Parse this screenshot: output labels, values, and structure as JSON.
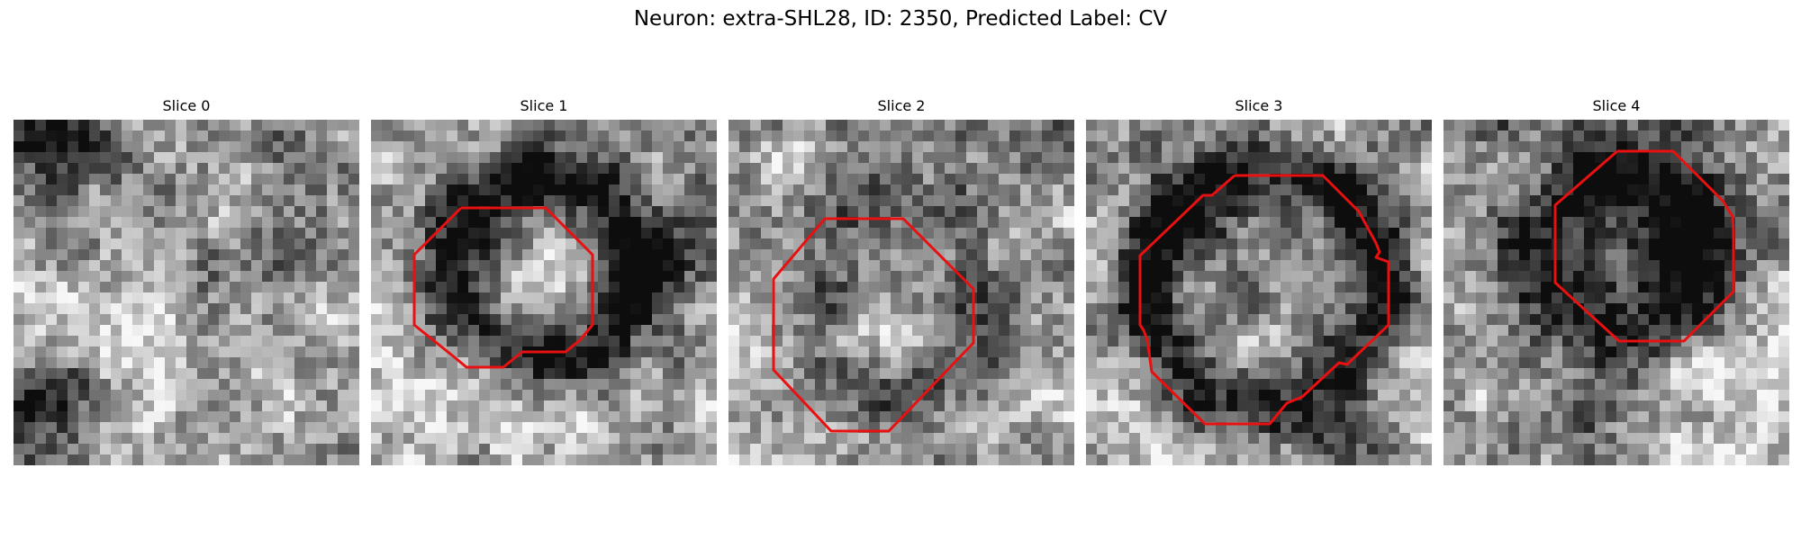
{
  "figure": {
    "title": "Neuron: extra-SHL28, ID: 2350, Predicted Label: CV"
  },
  "panels": [
    {
      "title": "Slice 0",
      "has_outline": false
    },
    {
      "title": "Slice 1",
      "has_outline": true
    },
    {
      "title": "Slice 2",
      "has_outline": true
    },
    {
      "title": "Slice 3",
      "has_outline": true
    },
    {
      "title": "Slice 4",
      "has_outline": true
    }
  ],
  "colors": {
    "outline": "#e81010",
    "colormap": "grayscale"
  }
}
